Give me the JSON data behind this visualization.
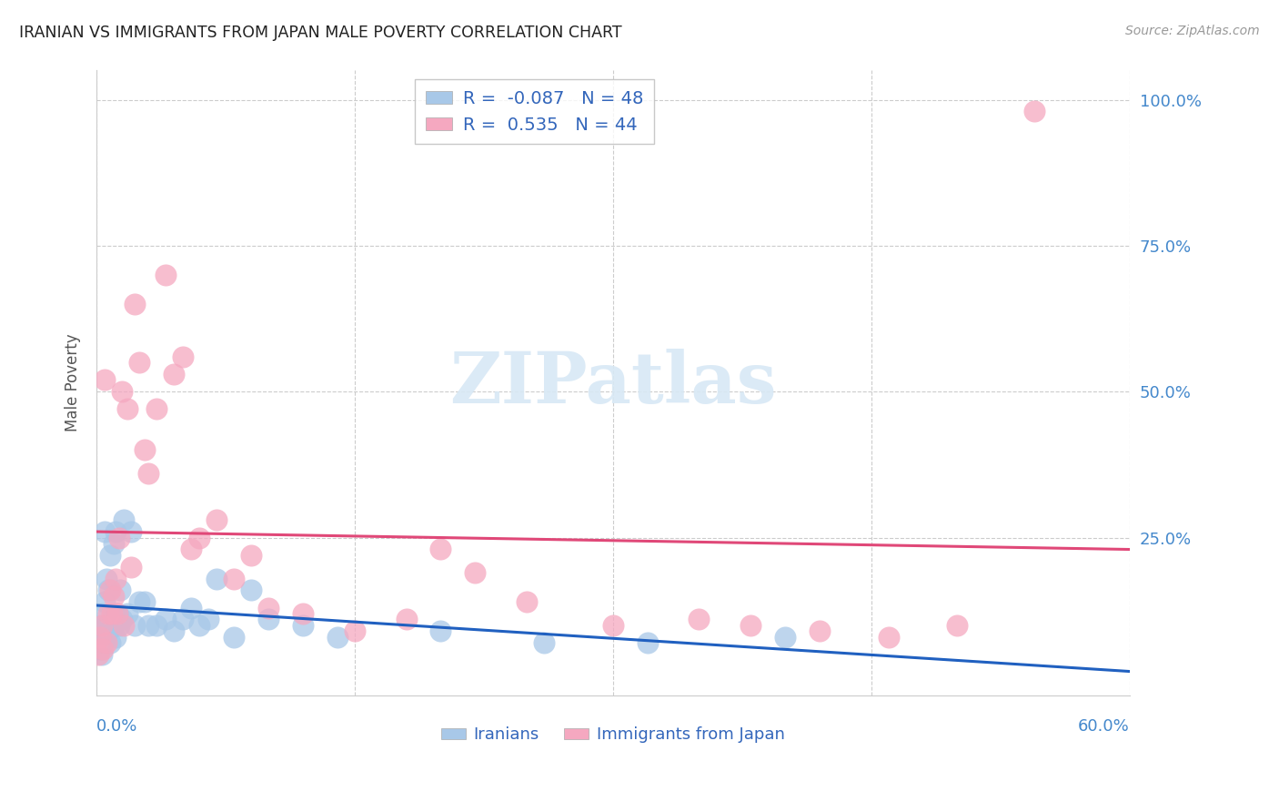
{
  "title": "IRANIAN VS IMMIGRANTS FROM JAPAN MALE POVERTY CORRELATION CHART",
  "source": "Source: ZipAtlas.com",
  "ylabel": "Male Poverty",
  "xlim": [
    0.0,
    0.6
  ],
  "ylim": [
    -0.02,
    1.05
  ],
  "iranians_R": -0.087,
  "iranians_N": 48,
  "japan_R": 0.535,
  "japan_N": 44,
  "iranians_color": "#a8c8e8",
  "japan_color": "#f5a8c0",
  "iranians_line_color": "#2060c0",
  "japan_line_color": "#e04878",
  "background_color": "#ffffff",
  "grid_color": "#cccccc",
  "title_color": "#222222",
  "axis_label_color": "#4488cc",
  "legend_label_color": "#3366bb",
  "watermark_color": "#d8e8f5",
  "iranians_x": [
    0.001,
    0.002,
    0.003,
    0.003,
    0.004,
    0.004,
    0.005,
    0.005,
    0.005,
    0.006,
    0.006,
    0.007,
    0.007,
    0.008,
    0.008,
    0.009,
    0.01,
    0.01,
    0.011,
    0.011,
    0.012,
    0.013,
    0.014,
    0.015,
    0.016,
    0.018,
    0.02,
    0.022,
    0.025,
    0.028,
    0.03,
    0.035,
    0.04,
    0.045,
    0.05,
    0.055,
    0.06,
    0.065,
    0.07,
    0.08,
    0.09,
    0.1,
    0.12,
    0.14,
    0.2,
    0.26,
    0.32,
    0.4
  ],
  "iranians_y": [
    0.08,
    0.06,
    0.1,
    0.05,
    0.12,
    0.07,
    0.08,
    0.14,
    0.26,
    0.1,
    0.18,
    0.09,
    0.16,
    0.07,
    0.22,
    0.11,
    0.1,
    0.24,
    0.08,
    0.26,
    0.12,
    0.1,
    0.16,
    0.11,
    0.28,
    0.12,
    0.26,
    0.1,
    0.14,
    0.14,
    0.1,
    0.1,
    0.11,
    0.09,
    0.11,
    0.13,
    0.1,
    0.11,
    0.18,
    0.08,
    0.16,
    0.11,
    0.1,
    0.08,
    0.09,
    0.07,
    0.07,
    0.08
  ],
  "japan_x": [
    0.001,
    0.002,
    0.003,
    0.004,
    0.005,
    0.006,
    0.007,
    0.008,
    0.009,
    0.01,
    0.011,
    0.012,
    0.013,
    0.015,
    0.016,
    0.018,
    0.02,
    0.022,
    0.025,
    0.028,
    0.03,
    0.035,
    0.04,
    0.045,
    0.05,
    0.055,
    0.06,
    0.07,
    0.08,
    0.09,
    0.1,
    0.12,
    0.15,
    0.18,
    0.2,
    0.22,
    0.25,
    0.3,
    0.35,
    0.38,
    0.42,
    0.46,
    0.5,
    0.545
  ],
  "japan_y": [
    0.05,
    0.08,
    0.1,
    0.06,
    0.52,
    0.07,
    0.12,
    0.16,
    0.12,
    0.15,
    0.18,
    0.12,
    0.25,
    0.5,
    0.1,
    0.47,
    0.2,
    0.65,
    0.55,
    0.4,
    0.36,
    0.47,
    0.7,
    0.53,
    0.56,
    0.23,
    0.25,
    0.28,
    0.18,
    0.22,
    0.13,
    0.12,
    0.09,
    0.11,
    0.23,
    0.19,
    0.14,
    0.1,
    0.11,
    0.1,
    0.09,
    0.08,
    0.1,
    0.98
  ]
}
